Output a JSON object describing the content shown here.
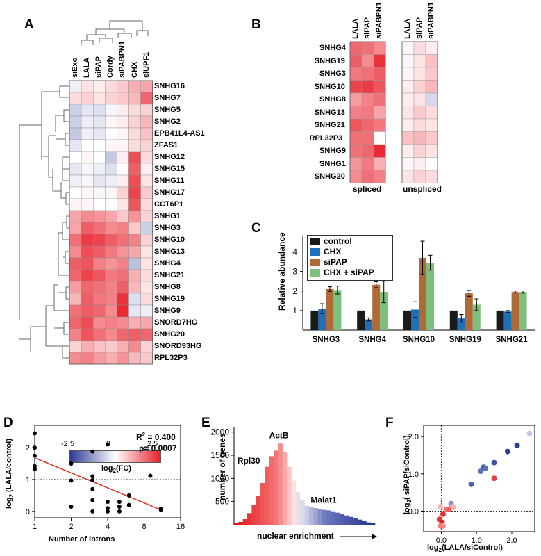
{
  "panelA": {
    "letter": "A",
    "columns": [
      "siExo",
      "LALA",
      "siPAP",
      "Cordy",
      "siPABPN1",
      "CHX",
      "siUPF1"
    ],
    "rows": [
      "SNHG16",
      "SNHG7",
      "SNHG5",
      "SNHG2",
      "EPB41L4-AS1",
      "ZFAS1",
      "SNHG12",
      "SNHG15",
      "SNHG11",
      "SNHG17",
      "CCT6P1",
      "SNHG1",
      "SNHG3",
      "SNHG10",
      "SNHG13",
      "SNHG4",
      "SNHG21",
      "SNHG8",
      "SNHG19",
      "SNHG9",
      "SNORD7HG",
      "SNHG20",
      "SNORD93HG",
      "RPL32P3"
    ],
    "values": [
      [
        -0.2,
        0.3,
        0.2,
        0.4,
        0.6,
        0.9,
        1.0
      ],
      [
        0.4,
        0.5,
        0.3,
        0.5,
        0.6,
        0.8,
        1.7
      ],
      [
        -0.6,
        -0.3,
        -0.4,
        -0.1,
        0.2,
        0.4,
        0.5
      ],
      [
        -0.6,
        -0.2,
        -0.3,
        0.1,
        0.2,
        0.5,
        0.8
      ],
      [
        -0.7,
        -0.2,
        -0.3,
        0.0,
        0.1,
        0.4,
        0.7
      ],
      [
        -0.3,
        0.0,
        0.0,
        0.1,
        0.1,
        0.4,
        0.5
      ],
      [
        0.0,
        0.1,
        0.0,
        -0.7,
        0.2,
        2.0,
        0.4
      ],
      [
        -0.3,
        -0.1,
        -0.2,
        -0.4,
        0.0,
        1.8,
        0.2
      ],
      [
        -0.2,
        -0.1,
        -0.3,
        -0.2,
        0.2,
        2.0,
        0.3
      ],
      [
        0.0,
        0.1,
        -0.1,
        0.1,
        0.5,
        2.1,
        0.6
      ],
      [
        0.1,
        0.1,
        0.0,
        0.0,
        0.3,
        1.9,
        0.4
      ],
      [
        1.0,
        1.3,
        1.2,
        1.0,
        0.6,
        1.2,
        0.5
      ],
      [
        1.0,
        1.8,
        1.6,
        1.3,
        1.4,
        0.6,
        -0.6
      ],
      [
        1.6,
        2.2,
        2.1,
        1.8,
        1.6,
        1.4,
        0.5
      ],
      [
        1.3,
        2.0,
        1.8,
        1.5,
        1.2,
        1.0,
        0.3
      ],
      [
        1.8,
        1.9,
        1.4,
        1.2,
        1.4,
        -0.8,
        0.3
      ],
      [
        1.7,
        2.1,
        1.9,
        1.5,
        1.6,
        0.9,
        0.4
      ],
      [
        1.1,
        1.7,
        1.6,
        1.4,
        1.8,
        0.8,
        0.3
      ],
      [
        0.8,
        1.8,
        1.5,
        1.4,
        2.3,
        -0.4,
        0.4
      ],
      [
        1.6,
        1.8,
        1.7,
        1.3,
        2.4,
        -0.3,
        -0.2
      ],
      [
        1.7,
        2.0,
        1.3,
        1.4,
        1.3,
        0.9,
        1.0
      ],
      [
        1.4,
        1.9,
        1.6,
        1.3,
        1.7,
        1.8,
        1.7
      ],
      [
        0.5,
        0.9,
        0.7,
        0.6,
        0.9,
        1.3,
        0.5
      ],
      [
        1.3,
        1.4,
        1.1,
        0.9,
        1.2,
        0.8,
        0.6
      ]
    ],
    "colorbar": {
      "min": -2.5,
      "max": 2.5,
      "ticks": [
        "-2.5",
        "0",
        "2.5"
      ],
      "label_main": "log",
      "label_sub": "2",
      "label_tail": "(FC)"
    }
  },
  "panelB": {
    "letter": "B",
    "rows": [
      "SNHG4",
      "SNHG19",
      "SNHG3",
      "SNHG10",
      "SNHG8",
      "SNHG13",
      "SNHG21",
      "RPL32P3",
      "SNHG9",
      "SNHG1",
      "SNHG20"
    ],
    "spliced": {
      "label": "spliced",
      "columns": [
        "LALA",
        "siPAP",
        "siPABPN1"
      ],
      "values": [
        [
          1.7,
          1.6,
          1.3
        ],
        [
          1.8,
          1.3,
          2.3
        ],
        [
          1.5,
          1.6,
          1.8
        ],
        [
          2.1,
          2.2,
          1.9
        ],
        [
          1.1,
          1.4,
          1.6
        ],
        [
          1.4,
          1.5,
          1.0
        ],
        [
          1.9,
          1.7,
          1.5
        ],
        [
          1.6,
          1.6,
          0.0
        ],
        [
          1.6,
          1.7,
          2.4
        ],
        [
          1.2,
          1.5,
          0.9
        ],
        [
          1.3,
          1.6,
          1.4
        ]
      ]
    },
    "unspliced": {
      "label": "unspliced",
      "columns": [
        "LALA",
        "siPAP",
        "siPABPN1"
      ],
      "values": [
        [
          0.1,
          0.4,
          0.2
        ],
        [
          -0.1,
          0.3,
          0.7
        ],
        [
          0.1,
          0.3,
          0.6
        ],
        [
          0.2,
          0.5,
          0.8
        ],
        [
          0.2,
          0.3,
          -0.5
        ],
        [
          0.3,
          0.6,
          0.4
        ],
        [
          0.2,
          0.4,
          0.3
        ],
        [
          0.7,
          0.8,
          0.6
        ],
        [
          0.2,
          0.5,
          0.3
        ],
        [
          0.1,
          0.2,
          0.0
        ],
        [
          0.3,
          0.5,
          0.4
        ]
      ]
    }
  },
  "panelC": {
    "letter": "C",
    "chart_data": {
      "type": "bar",
      "categories": [
        "SNHG3",
        "SNHG4",
        "SNHG10",
        "SNHG19",
        "SNHG21"
      ],
      "ylabel": "Relative abundance",
      "ylim": [
        0,
        4.8
      ],
      "yticks": [
        "1",
        "2",
        "3",
        "4"
      ],
      "legend": "top-left",
      "series": [
        {
          "name": "control",
          "color": "#1a1a1a",
          "values": [
            1,
            1,
            1,
            1,
            1
          ],
          "err": [
            0,
            0,
            0,
            0,
            0
          ]
        },
        {
          "name": "CHX",
          "color": "#2070b8",
          "values": [
            1.1,
            0.55,
            1.05,
            0.6,
            0.95
          ],
          "err": [
            0.25,
            0.08,
            0.4,
            0.2,
            0.05
          ]
        },
        {
          "name": "siPAP",
          "color": "#b06a35",
          "values": [
            2.1,
            2.32,
            3.7,
            1.88,
            1.95
          ],
          "err": [
            0.12,
            0.15,
            0.85,
            0.15,
            0.05
          ]
        },
        {
          "name": "CHX + siPAP",
          "color": "#7dbf7d",
          "values": [
            2.05,
            1.95,
            3.45,
            1.3,
            1.95
          ],
          "err": [
            0.2,
            0.55,
            0.38,
            0.3,
            0.06
          ]
        }
      ]
    }
  },
  "panelD": {
    "letter": "D",
    "chart_data": {
      "type": "scatter",
      "xlabel": "Number of introns",
      "ylabel_main": "log",
      "ylabel_sub": "2",
      "ylabel_tail": " (LALA/control)",
      "xlim": [
        0,
        16
      ],
      "ylim": [
        -0.2,
        2.7
      ],
      "xticks": [
        "1",
        "2",
        "4",
        "8",
        "16"
      ],
      "yticks": [
        "0",
        "1",
        "2"
      ],
      "xscale": "log2",
      "points": [
        [
          1,
          2.45
        ],
        [
          1,
          2.0
        ],
        [
          1,
          1.75
        ],
        [
          1,
          1.42
        ],
        [
          1,
          1.32
        ],
        [
          2,
          1.5
        ],
        [
          2,
          0.97
        ],
        [
          2,
          0.15
        ],
        [
          3,
          1.88
        ],
        [
          3,
          1.1
        ],
        [
          3,
          0.98
        ],
        [
          3,
          0.7
        ],
        [
          3,
          0.35
        ],
        [
          3,
          0.0
        ],
        [
          4,
          2.1
        ],
        [
          4,
          0.3
        ],
        [
          4,
          0.1
        ],
        [
          4,
          0.0
        ],
        [
          5,
          0.3
        ],
        [
          5,
          0.15
        ],
        [
          5,
          0.0
        ],
        [
          6,
          0.5
        ],
        [
          6,
          0.2
        ],
        [
          9,
          1.12
        ],
        [
          11,
          0.08
        ],
        [
          11,
          0.05
        ]
      ],
      "fit": [
        [
          1,
          1.68
        ],
        [
          11,
          0.05
        ]
      ],
      "refline": 1,
      "r2_label": "R",
      "r2_sup": "2",
      "r2_value": " =  0.400",
      "p_label": "p=  0.0007"
    }
  },
  "panelE": {
    "letter": "E",
    "chart_data": {
      "type": "bar",
      "ylabel": "number of genes",
      "xlabel": "nuclear enrichment",
      "ylim": [
        0,
        2100
      ],
      "yticks": [
        "500",
        "1000",
        "1500",
        "2000"
      ],
      "values": [
        30,
        60,
        120,
        250,
        420,
        620,
        900,
        1250,
        1480,
        1600,
        1750,
        1560,
        1250,
        950,
        700,
        520,
        410,
        380,
        360,
        330,
        320,
        310,
        290,
        260,
        230,
        200,
        170,
        140,
        110,
        80,
        50,
        30
      ],
      "annotations": [
        {
          "text": "Rpl30",
          "bin": 6
        },
        {
          "text": "ActB",
          "bin": 10
        },
        {
          "text": "Malat1",
          "bin": 17
        }
      ]
    }
  },
  "panelF": {
    "letter": "F",
    "chart_data": {
      "type": "scatter",
      "xlabel_main": "log",
      "xlabel_sub": "2",
      "xlabel_tail": "(LALA/siControl)",
      "ylabel_main": "log",
      "ylabel_sub": "2",
      "ylabel_tail": "( siPAP/siControl)",
      "xlim": [
        -0.5,
        2.65
      ],
      "ylim": [
        -0.55,
        2.3
      ],
      "xticks": [
        "0.0",
        "1.0",
        "2.0"
      ],
      "yticks": [
        "0.0",
        "1.0",
        "2.0"
      ],
      "points": [
        {
          "x": 2.5,
          "y": 2.08,
          "color": "#c8c8e6"
        },
        {
          "x": 2.15,
          "y": 1.76,
          "color": "#2d3f94"
        },
        {
          "x": 1.88,
          "y": 1.6,
          "color": "#2d3f94"
        },
        {
          "x": 1.5,
          "y": 1.3,
          "color": "#3d52a3"
        },
        {
          "x": 1.2,
          "y": 1.18,
          "color": "#4a62b0"
        },
        {
          "x": 1.25,
          "y": 1.15,
          "color": "#5a6fb8"
        },
        {
          "x": 1.12,
          "y": 1.07,
          "color": "#5a6fb8"
        },
        {
          "x": 0.85,
          "y": 0.72,
          "color": "#4a62b0"
        },
        {
          "x": 1.5,
          "y": 0.88,
          "color": "#e04040"
        },
        {
          "x": 0.28,
          "y": 0.2,
          "color": "#8290c8"
        },
        {
          "x": 0.3,
          "y": 0.12,
          "color": "#f2a0a0"
        },
        {
          "x": 0.15,
          "y": 0.05,
          "color": "#ee7070"
        },
        {
          "x": 0.22,
          "y": 0.05,
          "color": "#ee6060"
        },
        {
          "x": 0.35,
          "y": 0.1,
          "color": "#f2b0b0"
        },
        {
          "x": -0.02,
          "y": 0.12,
          "color": "#f4b8b8"
        },
        {
          "x": 0.05,
          "y": -0.08,
          "color": "#e03030"
        },
        {
          "x": -0.05,
          "y": -0.22,
          "color": "#e83838"
        },
        {
          "x": 0.02,
          "y": -0.3,
          "color": "#e02020"
        },
        {
          "x": 0.05,
          "y": -0.4,
          "color": "#f29090"
        },
        {
          "x": -0.02,
          "y": -0.4,
          "color": "#f08080"
        }
      ]
    }
  }
}
